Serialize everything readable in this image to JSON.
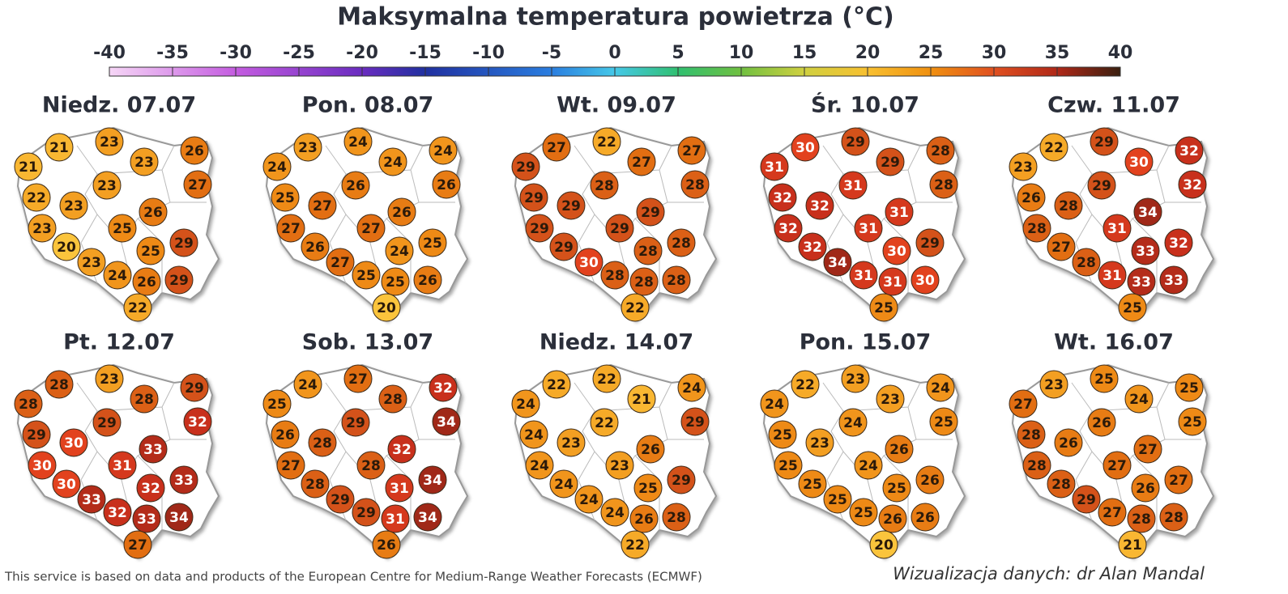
{
  "title": "Maksymalna temperatura powietrza (°C)",
  "scale": {
    "ticks": [
      -40,
      -35,
      -30,
      -25,
      -20,
      -15,
      -10,
      -5,
      0,
      5,
      10,
      15,
      20,
      25,
      30,
      35,
      40
    ]
  },
  "panels": [
    {
      "label": "Niedz. 07.07",
      "values": [
        21,
        23,
        26,
        21,
        23,
        23,
        27,
        22,
        23,
        26,
        23,
        25,
        20,
        25,
        29,
        23,
        24,
        26,
        29,
        22
      ]
    },
    {
      "label": "Pon. 08.07",
      "values": [
        23,
        24,
        24,
        24,
        24,
        26,
        26,
        25,
        27,
        26,
        27,
        27,
        26,
        24,
        25,
        27,
        25,
        25,
        26,
        20
      ]
    },
    {
      "label": "Wt. 09.07",
      "values": [
        27,
        22,
        27,
        29,
        27,
        28,
        28,
        29,
        29,
        29,
        29,
        29,
        29,
        28,
        28,
        30,
        28,
        28,
        28,
        22
      ]
    },
    {
      "label": "Śr. 10.07",
      "values": [
        30,
        29,
        28,
        31,
        29,
        31,
        28,
        32,
        32,
        31,
        32,
        31,
        32,
        30,
        29,
        34,
        31,
        31,
        30,
        25
      ]
    },
    {
      "label": "Czw. 11.07",
      "values": [
        22,
        29,
        32,
        23,
        30,
        29,
        32,
        26,
        28,
        34,
        28,
        31,
        27,
        33,
        32,
        28,
        31,
        33,
        33,
        25
      ]
    },
    {
      "label": "Pt. 12.07",
      "values": [
        28,
        23,
        29,
        28,
        28,
        29,
        32,
        29,
        30,
        33,
        30,
        31,
        30,
        32,
        33,
        33,
        32,
        33,
        34,
        27
      ]
    },
    {
      "label": "Sob. 13.07",
      "values": [
        24,
        27,
        32,
        25,
        28,
        29,
        34,
        26,
        28,
        32,
        27,
        28,
        28,
        31,
        34,
        29,
        29,
        31,
        34,
        26
      ]
    },
    {
      "label": "Niedz. 14.07",
      "values": [
        22,
        22,
        24,
        24,
        21,
        22,
        29,
        24,
        23,
        26,
        24,
        23,
        24,
        25,
        29,
        24,
        24,
        26,
        28,
        22
      ]
    },
    {
      "label": "Pon. 15.07",
      "values": [
        22,
        23,
        24,
        24,
        23,
        24,
        25,
        25,
        23,
        26,
        25,
        24,
        25,
        25,
        26,
        25,
        25,
        26,
        26,
        20
      ]
    },
    {
      "label": "Wt. 16.07",
      "values": [
        23,
        25,
        25,
        27,
        24,
        26,
        25,
        28,
        26,
        27,
        28,
        27,
        28,
        26,
        27,
        29,
        27,
        28,
        28,
        21
      ]
    }
  ],
  "source": "This service is based on data and products of the European Centre for Medium-Range Weather Forecasts (ECMWF)",
  "credit": "Wizualizacja danych: dr Alan Mandal"
}
